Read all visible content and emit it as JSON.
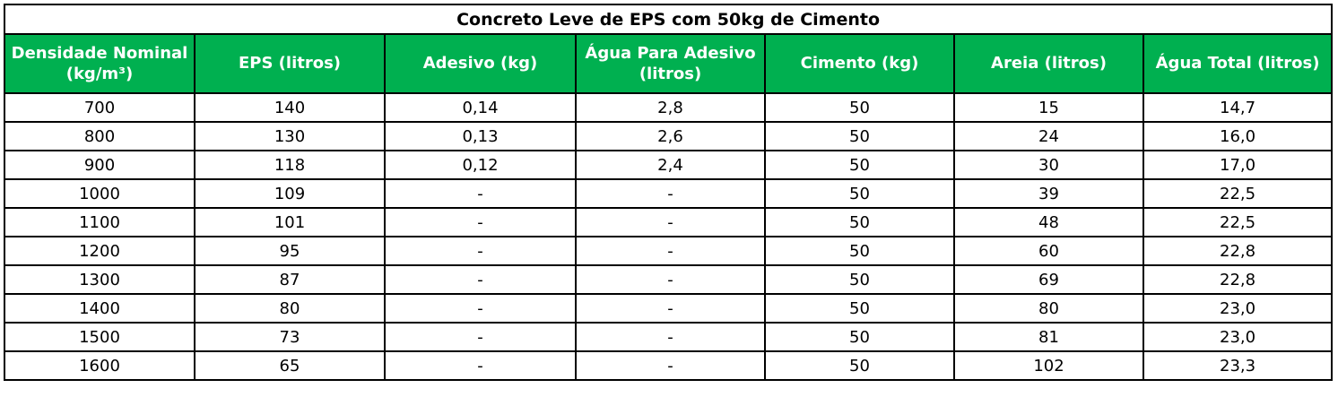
{
  "table": {
    "title": "Concreto Leve de EPS com 50kg de Cimento",
    "header_bg": "#00B050",
    "header_text_color": "#FFFFFF",
    "columns": [
      "Densidade Nominal (kg/m³)",
      "EPS (litros)",
      "Adesivo (kg)",
      "Água Para Adesivo (litros)",
      "Cimento (kg)",
      "Areia (litros)",
      "Água Total (litros)"
    ],
    "rows": [
      [
        "700",
        "140",
        "0,14",
        "2,8",
        "50",
        "15",
        "14,7"
      ],
      [
        "800",
        "130",
        "0,13",
        "2,6",
        "50",
        "24",
        "16,0"
      ],
      [
        "900",
        "118",
        "0,12",
        "2,4",
        "50",
        "30",
        "17,0"
      ],
      [
        "1000",
        "109",
        "-",
        "-",
        "50",
        "39",
        "22,5"
      ],
      [
        "1100",
        "101",
        "-",
        "-",
        "50",
        "48",
        "22,5"
      ],
      [
        "1200",
        "95",
        "-",
        "-",
        "50",
        "60",
        "22,8"
      ],
      [
        "1300",
        "87",
        "-",
        "-",
        "50",
        "69",
        "22,8"
      ],
      [
        "1400",
        "80",
        "-",
        "-",
        "50",
        "80",
        "23,0"
      ],
      [
        "1500",
        "73",
        "-",
        "-",
        "50",
        "81",
        "23,0"
      ],
      [
        "1600",
        "65",
        "-",
        "-",
        "50",
        "102",
        "23,3"
      ]
    ]
  }
}
